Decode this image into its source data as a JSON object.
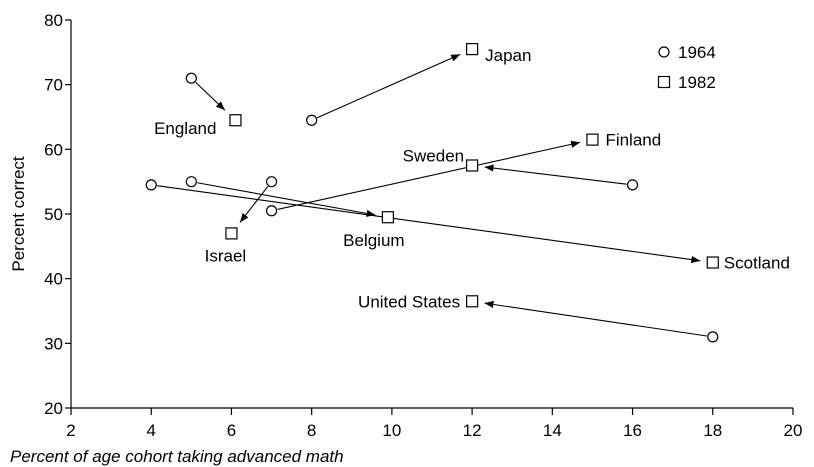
{
  "chart_data": {
    "type": "scatter",
    "title": "",
    "xlabel": "Percent of age cohort taking advanced math",
    "ylabel": "Percent correct",
    "xlim": [
      2,
      20
    ],
    "ylim": [
      20,
      80
    ],
    "x_ticks": [
      2,
      4,
      6,
      8,
      10,
      12,
      14,
      16,
      18,
      20
    ],
    "y_ticks": [
      20,
      30,
      40,
      50,
      60,
      70,
      80
    ],
    "grid": false,
    "legend": {
      "placement": "top-right",
      "entries": [
        {
          "label": "1964",
          "marker": "circle"
        },
        {
          "label": "1982",
          "marker": "square"
        }
      ]
    },
    "series": [
      {
        "name": "1964",
        "marker": "circle"
      },
      {
        "name": "1982",
        "marker": "square"
      }
    ],
    "countries": [
      {
        "name": "Japan",
        "from": [
          8,
          64.5
        ],
        "to": [
          12,
          75.5
        ],
        "label_side": "right"
      },
      {
        "name": "England",
        "from": [
          5,
          71
        ],
        "to": [
          6.1,
          64.5
        ],
        "label_side": "left"
      },
      {
        "name": "Finland",
        "from": [
          7,
          50.5
        ],
        "to": [
          15,
          61.5
        ],
        "label_side": "right"
      },
      {
        "name": "Sweden",
        "from": [
          16,
          54.5
        ],
        "to": [
          12,
          57.5
        ],
        "label_side": "above-left"
      },
      {
        "name": "Israel",
        "from": [
          7,
          55
        ],
        "to": [
          6,
          47
        ],
        "label_side": "below"
      },
      {
        "name": "Belgium",
        "from": [
          5,
          55
        ],
        "to": [
          9.9,
          49.5
        ],
        "label_side": "below"
      },
      {
        "name": "Scotland",
        "from": [
          4,
          54.5
        ],
        "to": [
          18,
          42.5
        ],
        "label_side": "right"
      },
      {
        "name": "United States",
        "from": [
          18,
          31
        ],
        "to": [
          12,
          36.5
        ],
        "label_side": "left"
      }
    ]
  }
}
